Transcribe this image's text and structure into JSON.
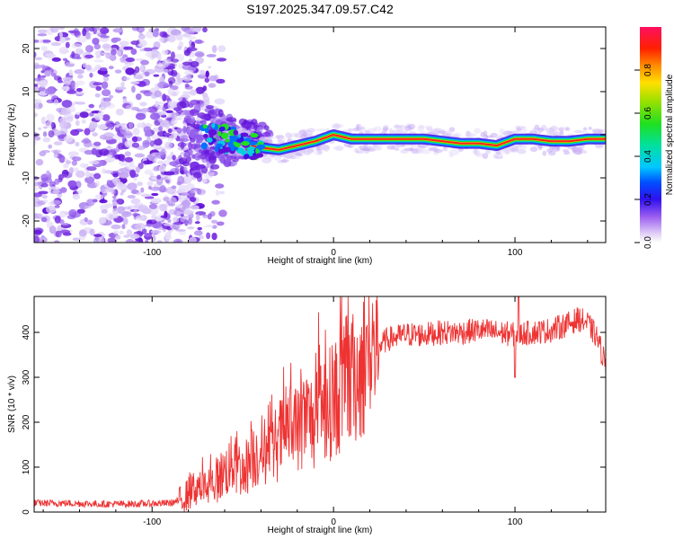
{
  "title": "S197.2025.347.09.57.C42",
  "colors": {
    "snr_line": "#ee3333",
    "blob": "#6a0dd8",
    "axis": "#000000"
  },
  "chart_data": [
    {
      "type": "heatmap",
      "title": "S197.2025.347.09.57.C42",
      "xlabel": "Height of straight line (km)",
      "ylabel": "Frequency (Hz)",
      "xlim": [
        -165,
        150
      ],
      "ylim": [
        -25,
        25
      ],
      "xticks": [
        -100,
        0,
        100
      ],
      "xtick_labels": [
        "-100",
        "0",
        "100"
      ],
      "yticks": [
        -20,
        -10,
        0,
        10,
        20
      ],
      "ytick_labels": [
        "-20",
        "-10",
        "0",
        "10",
        "20"
      ],
      "ridge": {
        "description": "peak spectral amplitude frequency track",
        "x": [
          -70,
          -60,
          -50,
          -40,
          -30,
          -20,
          -10,
          0,
          10,
          20,
          30,
          40,
          50,
          60,
          70,
          80,
          90,
          100,
          110,
          120,
          130,
          140,
          150
        ],
        "y": [
          0,
          -1,
          -2,
          -3,
          -3.5,
          -2.5,
          -1.5,
          0,
          -1,
          -1,
          -1,
          -1,
          -1,
          -1.5,
          -2,
          -2,
          -2.5,
          -1,
          -1,
          -1.5,
          -1.5,
          -1,
          -1
        ]
      },
      "colorbar": {
        "label": "Normalized spectral amplitude",
        "range": [
          0,
          1
        ],
        "ticks": [
          0.0,
          0.2,
          0.4,
          0.6,
          0.8
        ],
        "tick_labels": [
          "0.0",
          "0.2",
          "0.4",
          "0.6",
          "0.8"
        ]
      }
    },
    {
      "type": "line",
      "xlabel": "Height of straight line (km)",
      "ylabel": "SNR (10 * v/v)",
      "xlim": [
        -165,
        150
      ],
      "ylim": [
        0,
        480
      ],
      "xticks": [
        -100,
        0,
        100
      ],
      "xtick_labels": [
        "-100",
        "0",
        "100"
      ],
      "yticks": [
        0,
        100,
        200,
        300,
        400
      ],
      "ytick_labels": [
        "0",
        "100",
        "200",
        "300",
        "400"
      ],
      "series": [
        {
          "name": "SNR",
          "x": [
            -165,
            -150,
            -130,
            -110,
            -90,
            -85,
            -80,
            -75,
            -70,
            -65,
            -60,
            -55,
            -50,
            -45,
            -40,
            -35,
            -30,
            -25,
            -20,
            -15,
            -10,
            -5,
            0,
            5,
            10,
            15,
            20,
            25,
            30,
            40,
            50,
            60,
            70,
            80,
            90,
            100,
            110,
            120,
            130,
            135,
            140,
            145,
            150
          ],
          "y": [
            20,
            20,
            18,
            18,
            20,
            25,
            40,
            60,
            50,
            70,
            90,
            110,
            90,
            120,
            140,
            130,
            160,
            190,
            180,
            210,
            200,
            230,
            250,
            270,
            290,
            320,
            350,
            370,
            385,
            395,
            395,
            400,
            400,
            405,
            400,
            395,
            400,
            405,
            420,
            430,
            420,
            390,
            330
          ]
        }
      ]
    }
  ]
}
